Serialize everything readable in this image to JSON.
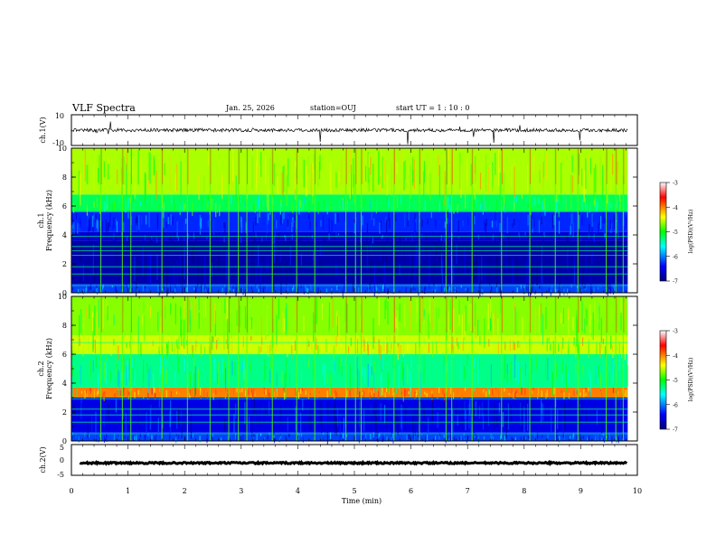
{
  "header": {
    "title": "VLF Spectra",
    "date": "Jan. 25, 2026",
    "station": "station=OUJ",
    "start": "start  UT =   1 : 10 : 0"
  },
  "chart_data": [
    {
      "type": "line",
      "panel": "ch1-waveform",
      "ylabel": "ch.1(V)",
      "ylim": [
        -10,
        10
      ],
      "yticks": [
        "10",
        "-10"
      ],
      "x_range_min": [
        0,
        9.83
      ],
      "baseline_v": 0,
      "color": "#000000"
    },
    {
      "type": "heatmap",
      "panel": "ch1-spectrogram",
      "ylabel": [
        "ch.1",
        "Frequency (kHz)"
      ],
      "ylim": [
        0,
        10
      ],
      "yticks": [
        "0",
        "2",
        "4",
        "6",
        "8",
        "10"
      ],
      "x_range_min": [
        0,
        9.83
      ],
      "bands_khz": [
        [
          0.0,
          0.6,
          0.2
        ],
        [
          0.6,
          3.6,
          0.05
        ],
        [
          3.6,
          4.2,
          0.1
        ],
        [
          4.2,
          5.6,
          0.18
        ],
        [
          5.6,
          6.8,
          0.45
        ],
        [
          6.8,
          10.0,
          0.6
        ]
      ],
      "bright_lines_khz": [
        0.5,
        1.3,
        1.8,
        2.6,
        2.9,
        3.2,
        3.9
      ],
      "spikes_min": [
        0.52,
        0.9,
        1.05,
        1.6,
        2.05,
        2.45,
        2.78,
        2.95,
        3.1,
        3.55,
        3.98,
        4.3,
        4.85,
        5.02,
        5.12,
        5.7,
        6.15,
        6.62,
        6.72,
        7.08,
        7.6,
        8.1,
        8.55,
        8.95,
        9.45,
        9.62,
        9.75
      ],
      "colorbar": {
        "label": "log(PSD)(V²/Hz)",
        "min": -7,
        "max": -3,
        "ticks": [
          "-3",
          "-4",
          "-5",
          "-6",
          "-7"
        ]
      }
    },
    {
      "type": "heatmap",
      "panel": "ch2-spectrogram",
      "ylabel": [
        "ch.2",
        "Frequency (kHz)"
      ],
      "ylim": [
        0,
        10
      ],
      "yticks": [
        "0",
        "2",
        "4",
        "6",
        "8",
        "10"
      ],
      "x_range_min": [
        0,
        9.83
      ],
      "bands_khz": [
        [
          0.0,
          0.6,
          0.2
        ],
        [
          0.6,
          3.0,
          0.12
        ],
        [
          3.0,
          3.7,
          0.75
        ],
        [
          3.7,
          6.0,
          0.42
        ],
        [
          6.0,
          7.3,
          0.62
        ],
        [
          7.3,
          10.0,
          0.58
        ]
      ],
      "bright_lines_khz": [
        0.5,
        1.3,
        1.8,
        2.2,
        2.9,
        6.8
      ],
      "spikes_min": [
        0.52,
        0.9,
        1.05,
        1.6,
        2.05,
        2.45,
        2.78,
        2.95,
        3.1,
        3.55,
        3.98,
        4.3,
        4.85,
        5.02,
        5.12,
        5.7,
        6.15,
        6.62,
        6.72,
        7.08,
        7.6,
        8.1,
        8.55,
        8.95,
        9.45,
        9.62,
        9.75
      ],
      "colorbar": {
        "label": "log(PSD)(V²/Hz)",
        "min": -7,
        "max": -3,
        "ticks": [
          "-3",
          "-4",
          "-5",
          "-6",
          "-7"
        ]
      }
    },
    {
      "type": "line",
      "panel": "ch2-waveform",
      "ylabel": "ch.2(V)",
      "ylim": [
        -5,
        5
      ],
      "yticks": [
        "5",
        "0",
        "-5"
      ],
      "x_range_min": [
        0.15,
        9.83
      ],
      "baseline_v": -1,
      "color": "#000000"
    }
  ],
  "xaxis": {
    "label": "Time (min)",
    "range": [
      0,
      10
    ],
    "ticks": [
      "0",
      "1",
      "2",
      "3",
      "4",
      "5",
      "6",
      "7",
      "8",
      "9",
      "10"
    ]
  }
}
